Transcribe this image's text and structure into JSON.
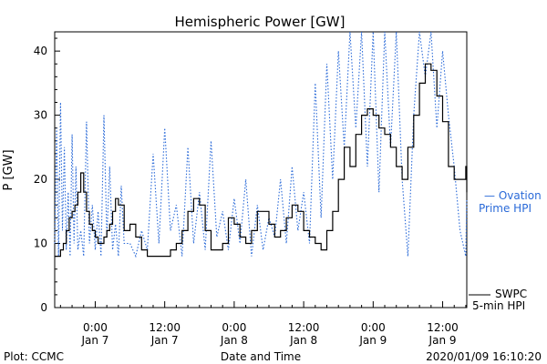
{
  "chart_data": {
    "type": "line",
    "title": "Hemispheric Power [GW]",
    "ylabel": "P [GW]",
    "xlabel": "Date and Time",
    "ylim": [
      0,
      43
    ],
    "xlim": [
      "2020-01-06T17:00",
      "2020-01-09T16:10"
    ],
    "grid": false,
    "x_unit": "datetime",
    "x_ticks": [
      {
        "x": "2020-01-07T00:00",
        "label1": "0:00",
        "label2": "Jan 7"
      },
      {
        "x": "2020-01-07T12:00",
        "label1": "12:00",
        "label2": "Jan 7"
      },
      {
        "x": "2020-01-08T00:00",
        "label1": "0:00",
        "label2": "Jan 8"
      },
      {
        "x": "2020-01-08T12:00",
        "label1": "12:00",
        "label2": "Jan 8"
      },
      {
        "x": "2020-01-09T00:00",
        "label1": "0:00",
        "label2": "Jan 9"
      },
      {
        "x": "2020-01-09T12:00",
        "label1": "12:00",
        "label2": "Jan 9"
      }
    ],
    "y_ticks": [
      0,
      10,
      20,
      30,
      40
    ],
    "series": [
      {
        "name": "Ovation Prime HPI",
        "legend_lines": [
          "— Ovation",
          "Prime HPI"
        ],
        "style": "dotted",
        "color": "#2a6ad8",
        "x": [
          "2020-01-06T17:00",
          "2020-01-06T17:20",
          "2020-01-06T17:40",
          "2020-01-06T18:00",
          "2020-01-06T18:20",
          "2020-01-06T18:40",
          "2020-01-06T19:00",
          "2020-01-06T19:20",
          "2020-01-06T19:40",
          "2020-01-06T20:00",
          "2020-01-06T20:20",
          "2020-01-06T20:40",
          "2020-01-06T21:00",
          "2020-01-06T21:30",
          "2020-01-06T22:00",
          "2020-01-06T22:30",
          "2020-01-06T23:00",
          "2020-01-06T23:30",
          "2020-01-07T00:00",
          "2020-01-07T00:30",
          "2020-01-07T01:00",
          "2020-01-07T01:30",
          "2020-01-07T02:00",
          "2020-01-07T02:30",
          "2020-01-07T03:00",
          "2020-01-07T03:30",
          "2020-01-07T04:00",
          "2020-01-07T04:30",
          "2020-01-07T05:00",
          "2020-01-07T06:00",
          "2020-01-07T07:00",
          "2020-01-07T08:00",
          "2020-01-07T09:00",
          "2020-01-07T10:00",
          "2020-01-07T11:00",
          "2020-01-07T12:00",
          "2020-01-07T13:00",
          "2020-01-07T14:00",
          "2020-01-07T15:00",
          "2020-01-07T16:00",
          "2020-01-07T17:00",
          "2020-01-07T18:00",
          "2020-01-07T19:00",
          "2020-01-07T20:00",
          "2020-01-07T21:00",
          "2020-01-07T22:00",
          "2020-01-07T23:00",
          "2020-01-08T00:00",
          "2020-01-08T01:00",
          "2020-01-08T02:00",
          "2020-01-08T03:00",
          "2020-01-08T04:00",
          "2020-01-08T05:00",
          "2020-01-08T06:00",
          "2020-01-08T07:00",
          "2020-01-08T08:00",
          "2020-01-08T09:00",
          "2020-01-08T10:00",
          "2020-01-08T11:00",
          "2020-01-08T12:00",
          "2020-01-08T13:00",
          "2020-01-08T14:00",
          "2020-01-08T15:00",
          "2020-01-08T16:00",
          "2020-01-08T17:00",
          "2020-01-08T18:00",
          "2020-01-08T19:00",
          "2020-01-08T20:00",
          "2020-01-08T21:00",
          "2020-01-08T22:00",
          "2020-01-08T23:00",
          "2020-01-09T00:00",
          "2020-01-09T01:00",
          "2020-01-09T02:00",
          "2020-01-09T03:00",
          "2020-01-09T04:00",
          "2020-01-09T05:00",
          "2020-01-09T06:00",
          "2020-01-09T07:00",
          "2020-01-09T08:00",
          "2020-01-09T09:00",
          "2020-01-09T10:00",
          "2020-01-09T11:00",
          "2020-01-09T12:00",
          "2020-01-09T13:00",
          "2020-01-09T14:00",
          "2020-01-09T15:00",
          "2020-01-09T16:00",
          "2020-01-09T16:10"
        ],
        "values": [
          10,
          28,
          8,
          32,
          12,
          25,
          9,
          18,
          8,
          27,
          10,
          22,
          9,
          12,
          8,
          29,
          10,
          16,
          9,
          15,
          8,
          30,
          11,
          22,
          9,
          13,
          8,
          19,
          10,
          10,
          8,
          12,
          9,
          24,
          10,
          28,
          12,
          16,
          8,
          25,
          10,
          18,
          9,
          26,
          11,
          15,
          9,
          17,
          10,
          20,
          8,
          16,
          9,
          14,
          11,
          20,
          10,
          22,
          12,
          18,
          10,
          35,
          14,
          38,
          20,
          40,
          25,
          43,
          28,
          43,
          22,
          43,
          18,
          43,
          25,
          43,
          20,
          8,
          30,
          43,
          36,
          43,
          28,
          40,
          30,
          22,
          12,
          8,
          17
        ]
      },
      {
        "name": "SWPC 5-min HPI",
        "legend_lines": [
          "SWPC",
          "5-min HPI"
        ],
        "style": "solid",
        "color": "#000000",
        "x": [
          "2020-01-06T17:00",
          "2020-01-06T17:30",
          "2020-01-06T18:00",
          "2020-01-06T18:30",
          "2020-01-06T19:00",
          "2020-01-06T19:30",
          "2020-01-06T20:00",
          "2020-01-06T20:30",
          "2020-01-06T21:00",
          "2020-01-06T21:30",
          "2020-01-06T22:00",
          "2020-01-06T22:30",
          "2020-01-06T23:00",
          "2020-01-06T23:30",
          "2020-01-07T00:00",
          "2020-01-07T00:30",
          "2020-01-07T01:00",
          "2020-01-07T01:30",
          "2020-01-07T02:00",
          "2020-01-07T02:30",
          "2020-01-07T03:00",
          "2020-01-07T03:30",
          "2020-01-07T04:00",
          "2020-01-07T05:00",
          "2020-01-07T06:00",
          "2020-01-07T07:00",
          "2020-01-07T08:00",
          "2020-01-07T09:00",
          "2020-01-07T10:00",
          "2020-01-07T11:00",
          "2020-01-07T12:00",
          "2020-01-07T13:00",
          "2020-01-07T14:00",
          "2020-01-07T15:00",
          "2020-01-07T16:00",
          "2020-01-07T17:00",
          "2020-01-07T18:00",
          "2020-01-07T19:00",
          "2020-01-07T20:00",
          "2020-01-07T21:00",
          "2020-01-07T22:00",
          "2020-01-07T23:00",
          "2020-01-08T00:00",
          "2020-01-08T01:00",
          "2020-01-08T02:00",
          "2020-01-08T03:00",
          "2020-01-08T04:00",
          "2020-01-08T05:00",
          "2020-01-08T06:00",
          "2020-01-08T07:00",
          "2020-01-08T08:00",
          "2020-01-08T09:00",
          "2020-01-08T10:00",
          "2020-01-08T11:00",
          "2020-01-08T12:00",
          "2020-01-08T13:00",
          "2020-01-08T14:00",
          "2020-01-08T15:00",
          "2020-01-08T16:00",
          "2020-01-08T17:00",
          "2020-01-08T18:00",
          "2020-01-08T19:00",
          "2020-01-08T20:00",
          "2020-01-08T21:00",
          "2020-01-08T22:00",
          "2020-01-08T23:00",
          "2020-01-09T00:00",
          "2020-01-09T01:00",
          "2020-01-09T02:00",
          "2020-01-09T03:00",
          "2020-01-09T04:00",
          "2020-01-09T05:00",
          "2020-01-09T06:00",
          "2020-01-09T07:00",
          "2020-01-09T08:00",
          "2020-01-09T09:00",
          "2020-01-09T10:00",
          "2020-01-09T11:00",
          "2020-01-09T12:00",
          "2020-01-09T13:00",
          "2020-01-09T14:00",
          "2020-01-09T15:00",
          "2020-01-09T15:30",
          "2020-01-09T16:00",
          "2020-01-09T16:10"
        ],
        "values": [
          8,
          8,
          9,
          10,
          12,
          14,
          15,
          16,
          18,
          21,
          18,
          15,
          13,
          12,
          11,
          10,
          10,
          11,
          12,
          13,
          15,
          17,
          16,
          12,
          13,
          11,
          9,
          8,
          8,
          8,
          8,
          9,
          10,
          12,
          15,
          17,
          16,
          12,
          9,
          9,
          10,
          14,
          13,
          11,
          10,
          12,
          15,
          15,
          13,
          11,
          12,
          14,
          16,
          15,
          12,
          11,
          10,
          9,
          12,
          15,
          20,
          25,
          22,
          27,
          30,
          31,
          30,
          28,
          27,
          25,
          22,
          20,
          25,
          30,
          35,
          38,
          37,
          33,
          29,
          22,
          20,
          20,
          20,
          22,
          18
        ]
      }
    ]
  },
  "footer": {
    "left": "Plot: CCMC",
    "center": "Date and Time",
    "right": "2020/01/09 16:10:20"
  },
  "colors": {
    "ovation": "#2a6ad8",
    "swpc": "#000000",
    "axes": "#000000",
    "background": "#ffffff"
  }
}
